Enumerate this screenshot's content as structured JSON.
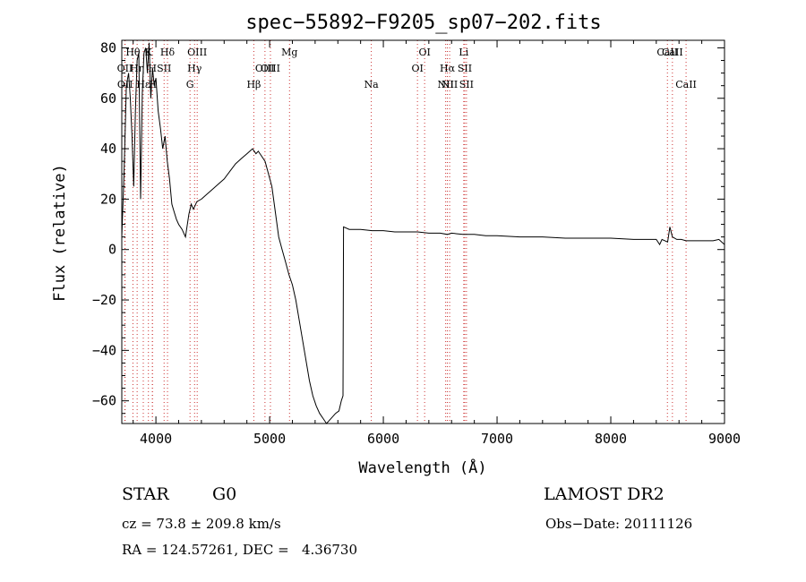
{
  "chart_data": {
    "type": "line",
    "title": "spec−55892−F9205_sp07−202.fits",
    "xlabel": "Wavelength (Å)",
    "ylabel": "Flux (relative)",
    "xlim": [
      3700,
      9000
    ],
    "ylim": [
      -69,
      83
    ],
    "xticks": [
      4000,
      5000,
      6000,
      7000,
      8000,
      9000
    ],
    "xtick_labels": [
      "4000",
      "5000",
      "6000",
      "7000",
      "8000",
      "9000"
    ],
    "yticks": [
      -60,
      -40,
      -20,
      0,
      20,
      40,
      60,
      80
    ],
    "ytick_labels": [
      "−60",
      "−40",
      "−20",
      "0",
      "20",
      "40",
      "60",
      "80"
    ],
    "grid": false,
    "series": [
      {
        "x": [
          3700,
          3720,
          3740,
          3760,
          3775,
          3790,
          3805,
          3820,
          3835,
          3850,
          3865,
          3880,
          3895,
          3910,
          3925,
          3940,
          3955,
          3970,
          3985,
          4000,
          4020,
          4040,
          4060,
          4080,
          4100,
          4120,
          4140,
          4160,
          4180,
          4200,
          4230,
          4260,
          4290,
          4310,
          4330,
          4360,
          4400,
          4450,
          4500,
          4550,
          4600,
          4650,
          4700,
          4750,
          4800,
          4850,
          4880,
          4900,
          4930,
          4960,
          4990,
          5020,
          5050,
          5080,
          5110,
          5140,
          5170,
          5200,
          5230,
          5260,
          5290,
          5320,
          5350,
          5380,
          5410,
          5440,
          5470,
          5500,
          5540,
          5580,
          5610,
          5630,
          5645,
          5650,
          5700,
          5800,
          5900,
          6000,
          6100,
          6200,
          6300,
          6400,
          6500,
          6563,
          6600,
          6700,
          6800,
          6900,
          7000,
          7200,
          7400,
          7600,
          7800,
          8000,
          8200,
          8400,
          8430,
          8450,
          8500,
          8520,
          8542,
          8580,
          8620,
          8662,
          8700,
          8800,
          8900,
          8950,
          9000
        ],
        "y": [
          5,
          30,
          65,
          70,
          60,
          45,
          25,
          55,
          75,
          78,
          20,
          62,
          78,
          80,
          70,
          82,
          60,
          72,
          65,
          68,
          55,
          48,
          40,
          45,
          35,
          28,
          18,
          15,
          12,
          10,
          8,
          5,
          14,
          18,
          16,
          19,
          20,
          22,
          24,
          26,
          28,
          31,
          34,
          36,
          38,
          40,
          38,
          39,
          37,
          35,
          30,
          25,
          15,
          5,
          0,
          -5,
          -10,
          -14,
          -20,
          -28,
          -36,
          -44,
          -52,
          -58,
          -62,
          -65,
          -67,
          -69,
          -67,
          -65,
          -64,
          -60,
          -58,
          9,
          8,
          8,
          7.5,
          7.5,
          7,
          7,
          7,
          6.5,
          6.5,
          6,
          6.5,
          6,
          6,
          5.5,
          5.5,
          5,
          5,
          4.5,
          4.5,
          4.5,
          4,
          4,
          2,
          4,
          3,
          9,
          5,
          4,
          4,
          3.5,
          3.5,
          3.5,
          3.5,
          4,
          2
        ]
      }
    ],
    "lines": [
      {
        "label": "Hθ",
        "x": 3798,
        "row": 0,
        "color": "#cc3333"
      },
      {
        "label": "OII",
        "x": 3727,
        "row": 1,
        "color": "#cc3333"
      },
      {
        "label": "OII",
        "x": 3729,
        "row": 2,
        "color": "#cc3333"
      },
      {
        "label": "Hη",
        "x": 3835,
        "row": 1,
        "color": "#cc3333"
      },
      {
        "label": "Hε",
        "x": 3889,
        "row": 2,
        "color": "#cc3333"
      },
      {
        "label": "K",
        "x": 3934,
        "row": 0,
        "color": "#cc3333"
      },
      {
        "label": "H",
        "x": 3969,
        "row": 1,
        "color": "#cc3333"
      },
      {
        "label": "H",
        "x": 3970,
        "row": 2,
        "color": "#cc3333"
      },
      {
        "label": "SII",
        "x": 4072,
        "row": 1,
        "color": "#cc3333"
      },
      {
        "label": "Hδ",
        "x": 4102,
        "row": 0,
        "color": "#cc3333"
      },
      {
        "label": "G",
        "x": 4300,
        "row": 2,
        "color": "#cc3333"
      },
      {
        "label": "Hγ",
        "x": 4340,
        "row": 1,
        "color": "#cc3333"
      },
      {
        "label": "OIII",
        "x": 4363,
        "row": 0,
        "color": "#cc3333"
      },
      {
        "label": "Hβ",
        "x": 4861,
        "row": 2,
        "color": "#cc3333"
      },
      {
        "label": "OIII",
        "x": 4959,
        "row": 1,
        "color": "#cc3333"
      },
      {
        "label": "OIII",
        "x": 5007,
        "row": 1,
        "color": "#cc3333"
      },
      {
        "label": "Mg",
        "x": 5175,
        "row": 0,
        "color": "#cc3333"
      },
      {
        "label": "Na",
        "x": 5894,
        "row": 2,
        "color": "#cc3333"
      },
      {
        "label": "OI",
        "x": 6300,
        "row": 1,
        "color": "#cc3333"
      },
      {
        "label": "OI",
        "x": 6363,
        "row": 0,
        "color": "#cc3333"
      },
      {
        "label": "NII",
        "x": 6548,
        "row": 2,
        "color": "#cc3333"
      },
      {
        "label": "Hα",
        "x": 6563,
        "row": 1,
        "color": "#cc3333"
      },
      {
        "label": "NII",
        "x": 6583,
        "row": 2,
        "color": "#cc3333"
      },
      {
        "label": "Li",
        "x": 6707,
        "row": 0,
        "color": "#cc3333"
      },
      {
        "label": "SII",
        "x": 6716,
        "row": 1,
        "color": "#cc3333"
      },
      {
        "label": "SII",
        "x": 6731,
        "row": 2,
        "color": "#cc3333"
      },
      {
        "label": "CaII",
        "x": 8498,
        "row": 0,
        "color": "#cc3333"
      },
      {
        "label": "CaII",
        "x": 8542,
        "row": 0,
        "color": "#cc3333"
      },
      {
        "label": "CaII",
        "x": 8662,
        "row": 2,
        "color": "#cc3333"
      }
    ]
  },
  "info": {
    "object_class": "STAR",
    "subclass": "G0",
    "survey": "LAMOST DR2",
    "redshift": "cz = 73.8 ± 209.8 km/s",
    "obs_date": "Obs−Date: 20111126",
    "coords": "RA = 124.57261, DEC =   4.36730"
  }
}
